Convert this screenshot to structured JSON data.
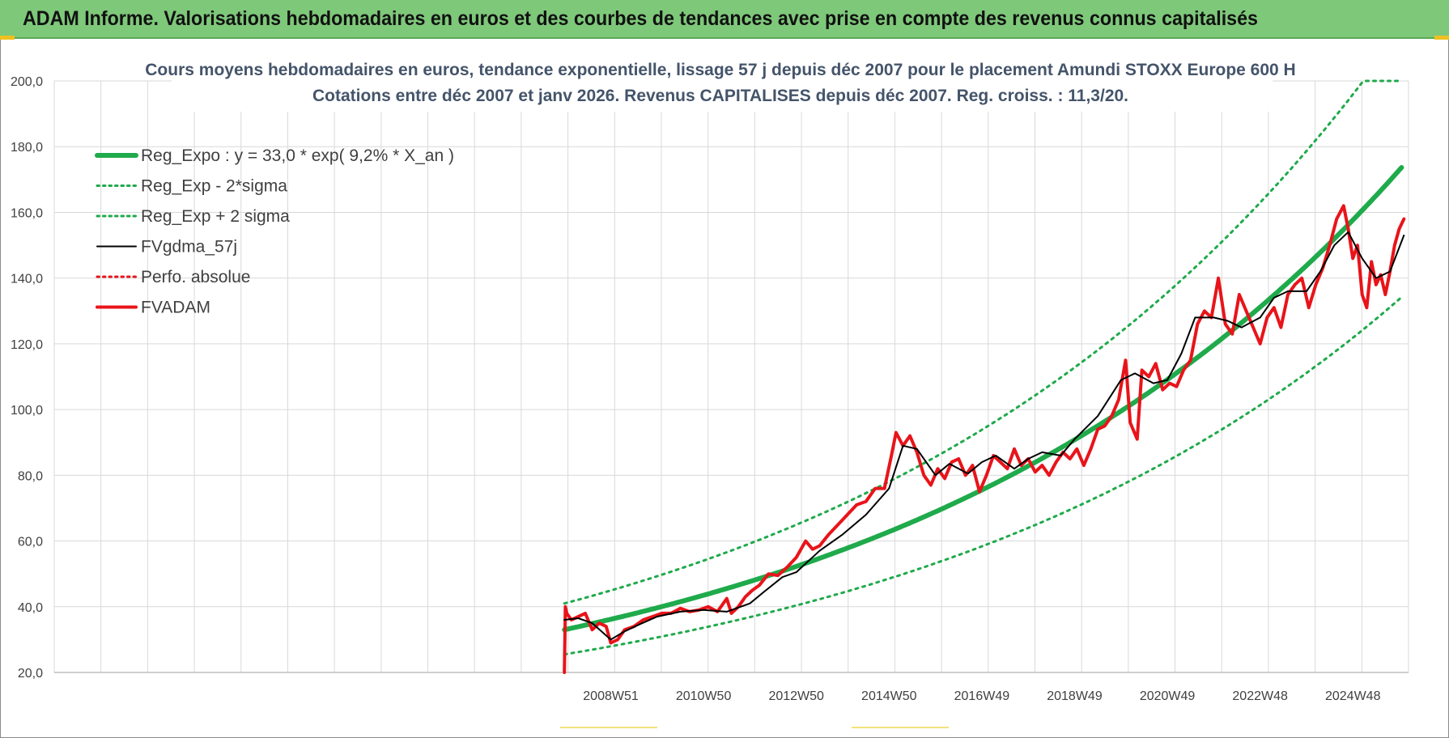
{
  "banner": {
    "title": "ADAM Informe. Valorisations hebdomadaires en euros et des courbes de tendances avec prise en compte des revenus connus capitalisés"
  },
  "chart_data": {
    "type": "line",
    "title": [
      "Cours moyens hebdomadaires en euros, tendance exponentielle, lissage 57 j depuis déc 2007 pour le placement Amundi STOXX Europe 600 H",
      "Cotations entre déc 2007 et janv 2026. Revenus CAPITALISES depuis déc 2007. Reg. croiss. : 11,3/20."
    ],
    "ylim": [
      20,
      200
    ],
    "yticks": [
      "20,0",
      "40,0",
      "60,0",
      "80,0",
      "100,0",
      "120,0",
      "140,0",
      "160,0",
      "180,0",
      "200,0"
    ],
    "xlim": [
      -11,
      18.2
    ],
    "xticks": [
      {
        "x": 1,
        "label": "2008W51"
      },
      {
        "x": 3,
        "label": "2010W50"
      },
      {
        "x": 5,
        "label": "2012W50"
      },
      {
        "x": 7,
        "label": "2014W50"
      },
      {
        "x": 9,
        "label": "2016W49"
      },
      {
        "x": 11,
        "label": "2018W49"
      },
      {
        "x": 13,
        "label": "2020W49"
      },
      {
        "x": 15,
        "label": "2022W48"
      },
      {
        "x": 17,
        "label": "2024W48"
      }
    ],
    "grid": true,
    "legend_position": "top-left",
    "colors": {
      "reg": "#1faa4b",
      "smooth": "#000000",
      "adam": "#e8141a",
      "perfo": "#e8141a",
      "grid": "#d9d9d9"
    },
    "series": [
      {
        "name": "Reg_Expo : y = 33,0 * exp( 9,2% *  X_an )",
        "style": "solid-thick",
        "color": "#1faa4b",
        "formula": {
          "a": 33.0,
          "b": 0.092,
          "sigma_factor": 1.0
        }
      },
      {
        "name": "Reg_Exp - 2*sigma",
        "style": "dotted",
        "color": "#1faa4b",
        "formula": {
          "a": 25.5,
          "b": 0.092
        }
      },
      {
        "name": "Reg_Exp + 2 sigma",
        "style": "dotted",
        "color": "#1faa4b",
        "formula": {
          "a": 41.0,
          "b": 0.092,
          "cap": 200
        }
      },
      {
        "name": "FVgdma_57j",
        "style": "solid",
        "color": "#000000",
        "x": [
          0,
          0.3,
          0.6,
          1.0,
          1.3,
          1.6,
          2.0,
          2.5,
          3.0,
          3.5,
          4.0,
          4.3,
          4.7,
          5.0,
          5.5,
          6.0,
          6.5,
          7.0,
          7.3,
          7.6,
          8.0,
          8.3,
          8.7,
          9.0,
          9.3,
          9.7,
          10.0,
          10.3,
          10.7,
          11.0,
          11.5,
          12.0,
          12.3,
          12.7,
          13.0,
          13.3,
          13.6,
          14.0,
          14.3,
          14.6,
          15.0,
          15.3,
          15.6,
          16.0,
          16.3,
          16.6,
          16.9,
          17.2,
          17.5,
          17.8,
          18.1
        ],
        "values": [
          36,
          36.5,
          35,
          30,
          32.5,
          34.5,
          37,
          38.5,
          39,
          38.5,
          41,
          44.5,
          49,
          50.5,
          57,
          62,
          68,
          76,
          89,
          88,
          80,
          83.5,
          80.5,
          84,
          86,
          82,
          85,
          87,
          86,
          91,
          98,
          109,
          111,
          108,
          109,
          117,
          128,
          128,
          127,
          125,
          128,
          134,
          136,
          136,
          142,
          150,
          154,
          146,
          140,
          142,
          153
        ]
      },
      {
        "name": "Perfo. absolue",
        "style": "dotted",
        "color": "#e8141a",
        "x": [],
        "values": []
      },
      {
        "name": "FVADAM",
        "style": "solid-thick",
        "color": "#e8141a",
        "x": [
          0,
          0.02,
          0.05,
          0.15,
          0.3,
          0.45,
          0.6,
          0.75,
          0.9,
          1.0,
          1.15,
          1.3,
          1.5,
          1.7,
          1.9,
          2.1,
          2.3,
          2.5,
          2.7,
          2.9,
          3.1,
          3.3,
          3.5,
          3.6,
          3.75,
          3.9,
          4.05,
          4.2,
          4.4,
          4.6,
          4.8,
          5.0,
          5.2,
          5.35,
          5.5,
          5.7,
          5.9,
          6.1,
          6.3,
          6.5,
          6.7,
          6.9,
          7.05,
          7.15,
          7.3,
          7.45,
          7.6,
          7.75,
          7.9,
          8.05,
          8.2,
          8.35,
          8.5,
          8.65,
          8.8,
          8.95,
          9.1,
          9.25,
          9.4,
          9.55,
          9.7,
          9.85,
          10.0,
          10.15,
          10.3,
          10.45,
          10.6,
          10.75,
          10.9,
          11.05,
          11.2,
          11.35,
          11.5,
          11.65,
          11.8,
          11.95,
          12.1,
          12.2,
          12.35,
          12.45,
          12.6,
          12.75,
          12.9,
          13.05,
          13.2,
          13.35,
          13.5,
          13.65,
          13.8,
          13.95,
          14.1,
          14.25,
          14.4,
          14.55,
          14.7,
          14.85,
          15.0,
          15.15,
          15.3,
          15.45,
          15.6,
          15.75,
          15.9,
          16.05,
          16.2,
          16.35,
          16.5,
          16.65,
          16.8,
          16.9,
          17.0,
          17.1,
          17.2,
          17.3,
          17.4,
          17.5,
          17.6,
          17.7,
          17.8,
          17.9,
          18.0,
          18.1
        ],
        "values": [
          20,
          40,
          38,
          36,
          37,
          38,
          33,
          35,
          34,
          29,
          30,
          33,
          34,
          36,
          37,
          38,
          38,
          39.5,
          38.5,
          39,
          40,
          38.5,
          42.5,
          38,
          40,
          43,
          45,
          46.5,
          50,
          49.5,
          52,
          55,
          60,
          57.5,
          58.5,
          62,
          65,
          68,
          71,
          72,
          76,
          76,
          86,
          93,
          89,
          92,
          87,
          80,
          77,
          82,
          79,
          84,
          85,
          80,
          83,
          75,
          80,
          86,
          84,
          82,
          88,
          83,
          85,
          81,
          83,
          80,
          84,
          87,
          85,
          88,
          83,
          88,
          94,
          95,
          98,
          103,
          115,
          96,
          91,
          112,
          110,
          114,
          106,
          108,
          107,
          112,
          115,
          126,
          130,
          128,
          140,
          126,
          123,
          135,
          130,
          125,
          120,
          128,
          131,
          125,
          135,
          138,
          140,
          131,
          138,
          143,
          150,
          158,
          162,
          155,
          146,
          150,
          135,
          131,
          145,
          138,
          141,
          135,
          142,
          150,
          155,
          158
        ]
      }
    ]
  }
}
